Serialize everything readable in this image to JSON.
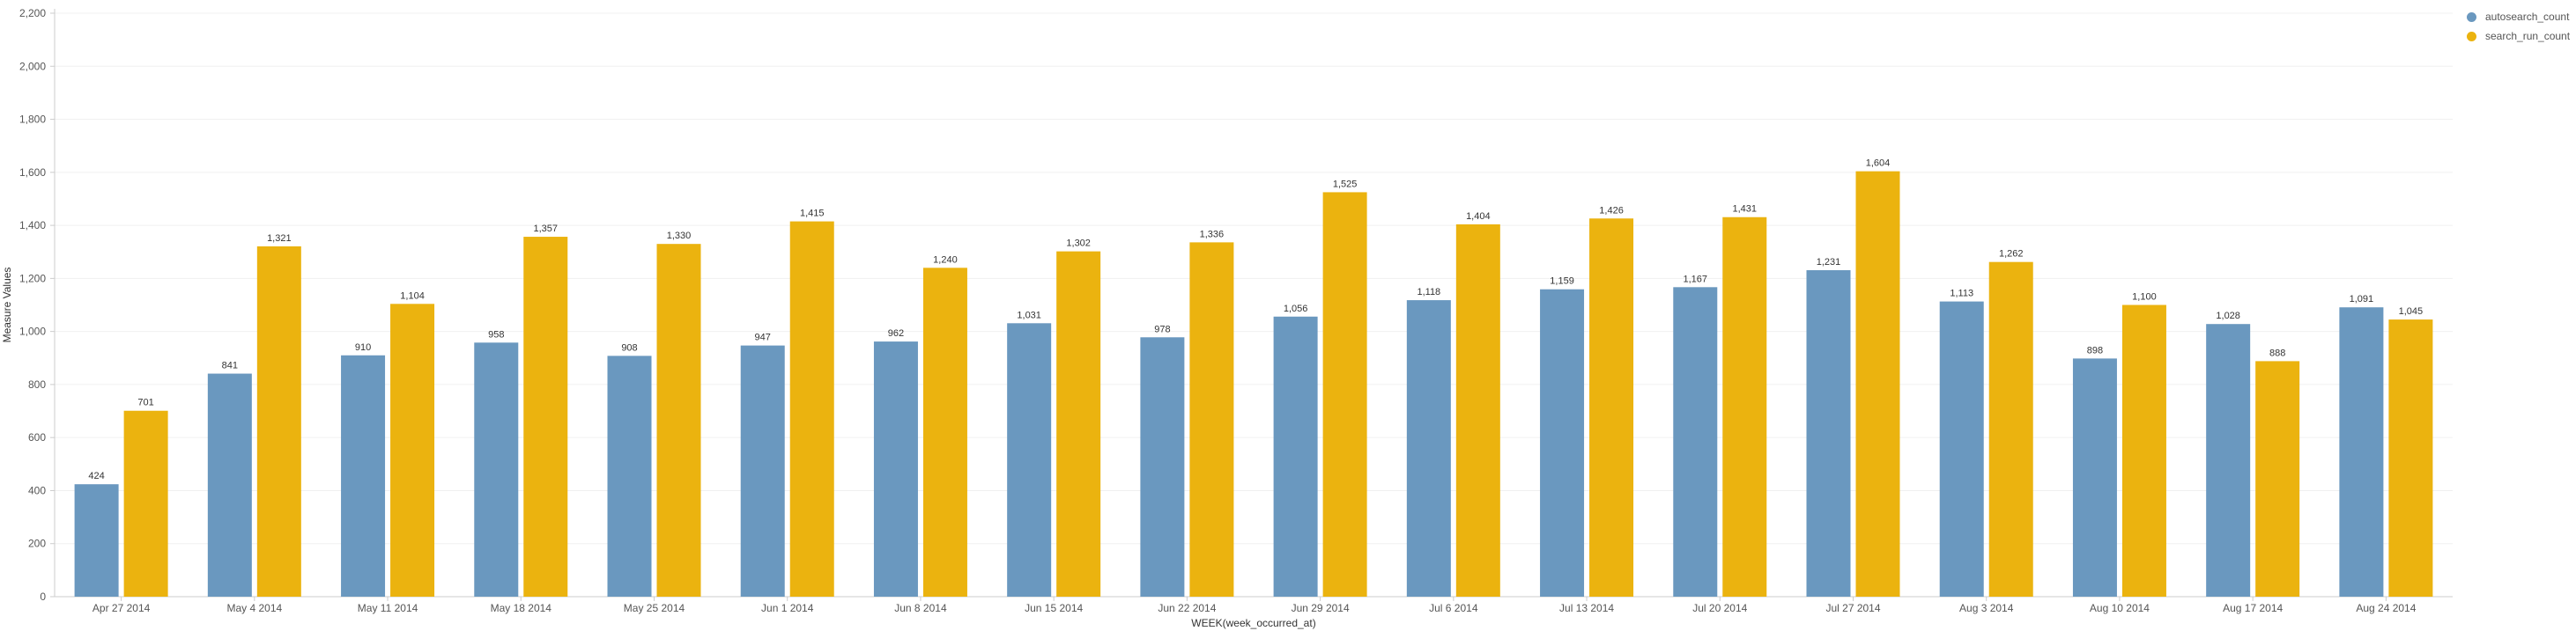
{
  "chart_data": {
    "type": "bar",
    "xlabel": "WEEK(week_occurred_at)",
    "ylabel": "Measure Values",
    "ylim": [
      0,
      2200
    ],
    "yticks": [
      0,
      200,
      400,
      600,
      800,
      1000,
      1200,
      1400,
      1600,
      1800,
      2000,
      2200
    ],
    "ytick_labels": [
      "0",
      "200",
      "400",
      "600",
      "800",
      "1,000",
      "1,200",
      "1,400",
      "1,600",
      "1,800",
      "2,000",
      "2,200"
    ],
    "grid": true,
    "legend_position": "top-right",
    "categories": [
      "Apr 27 2014",
      "May 4 2014",
      "May 11 2014",
      "May 18 2014",
      "May 25 2014",
      "Jun 1 2014",
      "Jun 8 2014",
      "Jun 15 2014",
      "Jun 22 2014",
      "Jun 29 2014",
      "Jul 6 2014",
      "Jul 13 2014",
      "Jul 20 2014",
      "Jul 27 2014",
      "Aug 3 2014",
      "Aug 10 2014",
      "Aug 17 2014",
      "Aug 24 2014"
    ],
    "series": [
      {
        "name": "autosearch_count",
        "color": "#6a98bf",
        "values": [
          424,
          841,
          910,
          958,
          908,
          947,
          962,
          1031,
          978,
          1056,
          1118,
          1159,
          1167,
          1231,
          1113,
          898,
          1028,
          1091
        ],
        "labels": [
          "424",
          "841",
          "910",
          "958",
          "908",
          "947",
          "962",
          "1,031",
          "978",
          "1,056",
          "1,118",
          "1,159",
          "1,167",
          "1,231",
          "1,113",
          "898",
          "1,028",
          "1,091"
        ]
      },
      {
        "name": "search_run_count",
        "color": "#ebb30f",
        "values": [
          701,
          1321,
          1104,
          1357,
          1330,
          1415,
          1240,
          1302,
          1336,
          1525,
          1404,
          1426,
          1431,
          1604,
          1262,
          1100,
          888,
          1045
        ],
        "labels": [
          "701",
          "1,321",
          "1,104",
          "1,357",
          "1,330",
          "1,415",
          "1,240",
          "1,302",
          "1,336",
          "1,525",
          "1,404",
          "1,426",
          "1,431",
          "1,604",
          "1,262",
          "1,100",
          "888",
          "1,045"
        ]
      }
    ]
  }
}
